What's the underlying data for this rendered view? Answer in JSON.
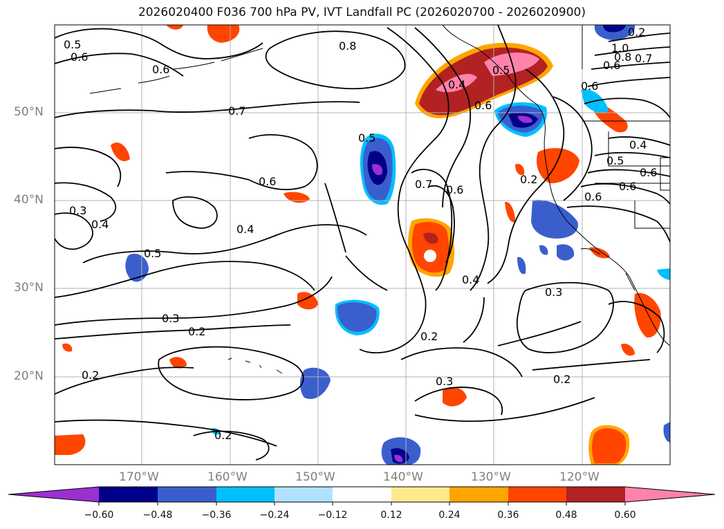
{
  "title": "2026020400 F036 700 hPa PV, IVT Landfall PC (2026020700 - 2026020900)",
  "map": {
    "lat_labels": [
      "50°N",
      "40°N",
      "30°N",
      "20°N"
    ],
    "lon_labels": [
      "170°W",
      "160°W",
      "150°W",
      "140°W",
      "130°W",
      "120°W"
    ],
    "contour_labels": [
      "0.5",
      "0.6",
      "0.6",
      "0.8",
      "0.7",
      "0.5",
      "0.4",
      "0.5",
      "0.6",
      "0.6",
      "0.2",
      "1.0",
      "0.8",
      "0.7",
      "0.6",
      "0.4",
      "0.5",
      "0.6",
      "0.6",
      "0.6",
      "0.7",
      "0.6",
      "0.2",
      "0.3",
      "0.4",
      "0.6",
      "0.4",
      "0.5",
      "0.4",
      "0.3",
      "0.2",
      "0.3",
      "0.2",
      "0.2",
      "0.3",
      "0.2",
      "0.2"
    ]
  },
  "colorbar": {
    "ticks": [
      "−0.60",
      "−0.48",
      "−0.36",
      "−0.24",
      "−0.12",
      "0.12",
      "0.24",
      "0.36",
      "0.48",
      "0.60"
    ],
    "colors": [
      "#9b30d0",
      "#00008b",
      "#3a5fcd",
      "#00bfff",
      "#b0e2ff",
      "#ffffff",
      "#ffe98f",
      "#ffa500",
      "#ff4500",
      "#b22222",
      "#ff82ab"
    ]
  }
}
